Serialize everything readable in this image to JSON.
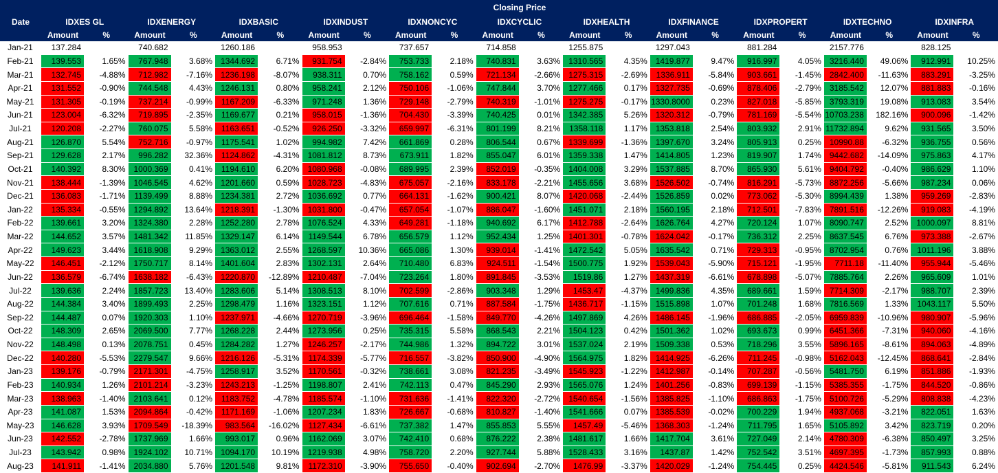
{
  "table": {
    "title": "Closing Price",
    "date_header": "Date",
    "amount_label": "Amount",
    "pct_label": "%",
    "columns": [
      "IDXES GL",
      "IDXENERGY",
      "IDXBASIC",
      "IDXINDUST",
      "IDXNONCYC",
      "IDXCYCLIC",
      "IDXHEALTH",
      "IDXFINANCE",
      "IDXPROPERT",
      "IDXTECHNO",
      "IDXINFRA"
    ],
    "rows": [
      [
        "Jan-21",
        "137.284",
        null,
        "740.682",
        null,
        "1260.186",
        null,
        "958.953",
        null,
        "737.657",
        null,
        "714.858",
        null,
        "1255.875",
        null,
        "1297.043",
        null,
        "881.284",
        null,
        "2157.776",
        null,
        "828.125",
        null
      ],
      [
        "Feb-21",
        "139.553",
        "1.65%",
        "767.948",
        "3.68%",
        "1344.692",
        "6.71%",
        "931.754",
        "-2.84%",
        "753.733",
        "2.18%",
        "740.831",
        "3.63%",
        "1310.565",
        "4.35%",
        "1419.877",
        "9.47%",
        "916.997",
        "4.05%",
        "3216.440",
        "49.06%",
        "912.991",
        "10.25%"
      ],
      [
        "Mar-21",
        "132.745",
        "-4.88%",
        "712.982",
        "-7.16%",
        "1236.198",
        "-8.07%",
        "938.311",
        "0.70%",
        "758.162",
        "0.59%",
        "721.134",
        "-2.66%",
        "1275.315",
        "-2.69%",
        "1336.911",
        "-5.84%",
        "903.661",
        "-1.45%",
        "2842.400",
        "-11.63%",
        "883.291",
        "-3.25%"
      ],
      [
        "Apr-21",
        "131.552",
        "-0.90%",
        "744.548",
        "4.43%",
        "1246.131",
        "0.80%",
        "958.241",
        "2.12%",
        "750.106",
        "-1.06%",
        "747.844",
        "3.70%",
        "1277.466",
        "0.17%",
        "1327.735",
        "-0.69%",
        "878.406",
        "-2.79%",
        "3185.542",
        "12.07%",
        "881.883",
        "-0.16%"
      ],
      [
        "May-21",
        "131.305",
        "-0.19%",
        "737.214",
        "-0.99%",
        "1167.209",
        "-6.33%",
        "971.248",
        "1.36%",
        "729.148",
        "-2.79%",
        "740.319",
        "-1.01%",
        "1275.275",
        "-0.17%",
        "1330.8000",
        "0.23%",
        "827.018",
        "-5.85%",
        "3793.319",
        "19.08%",
        "913.083",
        "3.54%"
      ],
      [
        "Jun-21",
        "123.004",
        "-6.32%",
        "719.895",
        "-2.35%",
        "1169.677",
        "0.21%",
        "958.015",
        "-1.36%",
        "704.430",
        "-3.39%",
        "740.425",
        "0.01%",
        "1342.385",
        "5.26%",
        "1320.312",
        "-0.79%",
        "781.169",
        "-5.54%",
        "10703.238",
        "182.16%",
        "900.096",
        "-1.42%"
      ],
      [
        "Jul-21",
        "120.208",
        "-2.27%",
        "760.075",
        "5.58%",
        "1163.651",
        "-0.52%",
        "926.250",
        "-3.32%",
        "659.997",
        "-6.31%",
        "801.199",
        "8.21%",
        "1358.118",
        "1.17%",
        "1353.818",
        "2.54%",
        "803.932",
        "2.91%",
        "11732.894",
        "9.62%",
        "931.565",
        "3.50%"
      ],
      [
        "Aug-21",
        "126.870",
        "5.54%",
        "752.716",
        "-0.97%",
        "1175.541",
        "1.02%",
        "994.982",
        "7.42%",
        "661.869",
        "0.28%",
        "806.544",
        "0.67%",
        "1339.699",
        "-1.36%",
        "1397.670",
        "3.24%",
        "805.913",
        "0.25%",
        "10990.88",
        "-6.32%",
        "936.755",
        "0.56%"
      ],
      [
        "Sep-21",
        "129.628",
        "2.17%",
        "996.282",
        "32.36%",
        "1124.862",
        "-4.31%",
        "1081.812",
        "8.73%",
        "673.911",
        "1.82%",
        "855.047",
        "6.01%",
        "1359.338",
        "1.47%",
        "1414.805",
        "1.23%",
        "819.907",
        "1.74%",
        "9442.682",
        "-14.09%",
        "975.863",
        "4.17%"
      ],
      [
        "Oct-21",
        "140.392",
        "8.30%",
        "1000.369",
        "0.41%",
        "1194.610",
        "6.20%",
        "1080.968",
        "-0.08%",
        "689.995",
        "2.39%",
        "852.019",
        "-0.35%",
        "1404.008",
        "3.29%",
        "1537.885",
        "8.70%",
        "865.930",
        "5.61%",
        "9404.792",
        "-0.40%",
        "986.629",
        "1.10%"
      ],
      [
        "Nov-21",
        "138.444",
        "-1.39%",
        "1046.545",
        "4.62%",
        "1201.660",
        "0.59%",
        "1028.723",
        "-4.83%",
        "675.057",
        "-2.16%",
        "833.178",
        "-2.21%",
        "1455.656",
        "3.68%",
        "1526.502",
        "-0.74%",
        "816.291",
        "-5.73%",
        "8872.256",
        "-5.66%",
        "987.234",
        "0.06%"
      ],
      [
        "Dec-21",
        "136.083",
        "-1.71%",
        "1139.499",
        "8.88%",
        "1234.381",
        "2.72%",
        "1036.692",
        "0.77%",
        "664.131",
        "-1.62%",
        "900.421",
        "8.07%",
        "1420.068",
        "-2.44%",
        "1526.859",
        "0.02%",
        "773.062",
        "-5.30%",
        "8994.439",
        "1.38%",
        "959.269",
        "-2.83%"
      ],
      [
        "Jan-22",
        "135.334",
        "-0.55%",
        "1294.892",
        "13.64%",
        "1218.391",
        "-1.30%",
        "1031.800",
        "-0.47%",
        "657.054",
        "-1.07%",
        "886.047",
        "-1.60%",
        "1451.071",
        "2.18%",
        "1560.195",
        "2.18%",
        "712.501",
        "-7.83%",
        "7891.516",
        "-12.26%",
        "919.083",
        "-4.19%"
      ],
      [
        "Feb-22",
        "139.661",
        "3.20%",
        "1324.380",
        "2.28%",
        "1252.280",
        "2.78%",
        "1076.524",
        "4.33%",
        "649.281",
        "-1.18%",
        "940.692",
        "6.17%",
        "1412.788",
        "-2.64%",
        "1626.764",
        "4.27%",
        "720.124",
        "1.07%",
        "8090.747",
        "2.52%",
        "1000.097",
        "8.81%"
      ],
      [
        "Mar-22",
        "144.652",
        "3.57%",
        "1481.342",
        "11.85%",
        "1329.147",
        "6.14%",
        "1149.544",
        "6.78%",
        "656.579",
        "1.12%",
        "952.434",
        "1.25%",
        "1401.301",
        "-0.78%",
        "1624.042",
        "-0.17%",
        "736.312",
        "2.25%",
        "8637.545",
        "6.76%",
        "973.388",
        "-2.67%"
      ],
      [
        "Apr-22",
        "149.623",
        "3.44%",
        "1618.908",
        "9.29%",
        "1363.012",
        "2.55%",
        "1268.597",
        "10.36%",
        "665.086",
        "1.30%",
        "939.014",
        "-1.41%",
        "1472.542",
        "5.05%",
        "1635.542",
        "0.71%",
        "729.313",
        "-0.95%",
        "8702.954",
        "0.76%",
        "1011.196",
        "3.88%"
      ],
      [
        "May-22",
        "146.451",
        "-2.12%",
        "1750.717",
        "8.14%",
        "1401.604",
        "2.83%",
        "1302.131",
        "2.64%",
        "710.480",
        "6.83%",
        "924.511",
        "-1.54%",
        "1500.775",
        "1.92%",
        "1539.043",
        "-5.90%",
        "715.121",
        "-1.95%",
        "7711.18",
        "-11.40%",
        "955.944",
        "-5.46%"
      ],
      [
        "Jun-22",
        "136.579",
        "-6.74%",
        "1638.182",
        "-6.43%",
        "1220.870",
        "-12.89%",
        "1210.487",
        "-7.04%",
        "723.264",
        "1.80%",
        "891.845",
        "-3.53%",
        "1519.86",
        "1.27%",
        "1437.319",
        "-6.61%",
        "678.898",
        "-5.07%",
        "7885.764",
        "2.26%",
        "965.609",
        "1.01%"
      ],
      [
        "Jul-22",
        "139.636",
        "2.24%",
        "1857.723",
        "13.40%",
        "1283.606",
        "5.14%",
        "1308.513",
        "8.10%",
        "702.599",
        "-2.86%",
        "903.348",
        "1.29%",
        "1453.47",
        "-4.37%",
        "1499.836",
        "4.35%",
        "689.661",
        "1.59%",
        "7714.309",
        "-2.17%",
        "988.707",
        "2.39%"
      ],
      [
        "Aug-22",
        "144.384",
        "3.40%",
        "1899.493",
        "2.25%",
        "1298.479",
        "1.16%",
        "1323.151",
        "1.12%",
        "707.616",
        "0.71%",
        "887.584",
        "-1.75%",
        "1436.717",
        "-1.15%",
        "1515.898",
        "1.07%",
        "701.248",
        "1.68%",
        "7816.569",
        "1.33%",
        "1043.117",
        "5.50%"
      ],
      [
        "Sep-22",
        "144.487",
        "0.07%",
        "1920.303",
        "1.10%",
        "1237.971",
        "-4.66%",
        "1270.719",
        "-3.96%",
        "696.464",
        "-1.58%",
        "849.770",
        "-4.26%",
        "1497.869",
        "4.26%",
        "1486.145",
        "-1.96%",
        "686.885",
        "-2.05%",
        "6959.839",
        "-10.96%",
        "980.907",
        "-5.96%"
      ],
      [
        "Oct-22",
        "148.309",
        "2.65%",
        "2069.500",
        "7.77%",
        "1268.228",
        "2.44%",
        "1273.956",
        "0.25%",
        "735.315",
        "5.58%",
        "868.543",
        "2.21%",
        "1504.123",
        "0.42%",
        "1501.362",
        "1.02%",
        "693.673",
        "0.99%",
        "6451.366",
        "-7.31%",
        "940.060",
        "-4.16%"
      ],
      [
        "Nov-22",
        "148.498",
        "0.13%",
        "2078.751",
        "0.45%",
        "1284.282",
        "1.27%",
        "1246.257",
        "-2.17%",
        "744.986",
        "1.32%",
        "894.722",
        "3.01%",
        "1537.024",
        "2.19%",
        "1509.338",
        "0.53%",
        "718.296",
        "3.55%",
        "5896.165",
        "-8.61%",
        "894.063",
        "-4.89%"
      ],
      [
        "Dec-22",
        "140.280",
        "-5.53%",
        "2279.547",
        "9.66%",
        "1216.126",
        "-5.31%",
        "1174.339",
        "-5.77%",
        "716.557",
        "-3.82%",
        "850.900",
        "-4.90%",
        "1564.975",
        "1.82%",
        "1414.925",
        "-6.26%",
        "711.245",
        "-0.98%",
        "5162.043",
        "-12.45%",
        "868.641",
        "-2.84%"
      ],
      [
        "Jan-23",
        "139.176",
        "-0.79%",
        "2171.301",
        "-4.75%",
        "1258.917",
        "3.52%",
        "1170.561",
        "-0.32%",
        "738.661",
        "3.08%",
        "821.235",
        "-3.49%",
        "1545.923",
        "-1.22%",
        "1412.987",
        "-0.14%",
        "707.287",
        "-0.56%",
        "5481.750",
        "6.19%",
        "851.886",
        "-1.93%"
      ],
      [
        "Feb-23",
        "140.934",
        "1.26%",
        "2101.214",
        "-3.23%",
        "1243.213",
        "-1.25%",
        "1198.807",
        "2.41%",
        "742.113",
        "0.47%",
        "845.290",
        "2.93%",
        "1565.076",
        "1.24%",
        "1401.256",
        "-0.83%",
        "699.139",
        "-1.15%",
        "5385.355",
        "-1.75%",
        "844.520",
        "-0.86%"
      ],
      [
        "Mar-23",
        "138.963",
        "-1.40%",
        "2103.641",
        "0.12%",
        "1183.752",
        "-4.78%",
        "1185.574",
        "-1.10%",
        "731.636",
        "-1.41%",
        "822.320",
        "-2.72%",
        "1540.654",
        "-1.56%",
        "1385.825",
        "-1.10%",
        "686.863",
        "-1.75%",
        "5100.726",
        "-5.29%",
        "808.838",
        "-4.23%"
      ],
      [
        "Apr-23",
        "141.087",
        "1.53%",
        "2094.864",
        "-0.42%",
        "1171.169",
        "-1.06%",
        "1207.234",
        "1.83%",
        "726.667",
        "-0.68%",
        "810.827",
        "-1.40%",
        "1541.666",
        "0.07%",
        "1385.539",
        "-0.02%",
        "700.229",
        "1.94%",
        "4937.068",
        "-3.21%",
        "822.051",
        "1.63%"
      ],
      [
        "May-23",
        "146.628",
        "3.93%",
        "1709.549",
        "-18.39%",
        "983.564",
        "-16.02%",
        "1127.434",
        "-6.61%",
        "737.382",
        "1.47%",
        "855.853",
        "5.55%",
        "1457.49",
        "-5.46%",
        "1368.303",
        "-1.24%",
        "711.795",
        "1.65%",
        "5105.892",
        "3.42%",
        "823.719",
        "0.20%"
      ],
      [
        "Jun-23",
        "142.552",
        "-2.78%",
        "1737.969",
        "1.66%",
        "993.017",
        "0.96%",
        "1162.069",
        "3.07%",
        "742.410",
        "0.68%",
        "876.222",
        "2.38%",
        "1481.617",
        "1.66%",
        "1417.704",
        "3.61%",
        "727.049",
        "2.14%",
        "4780.309",
        "-6.38%",
        "850.497",
        "3.25%"
      ],
      [
        "Jul-23",
        "143.942",
        "0.98%",
        "1924.102",
        "10.71%",
        "1094.170",
        "10.19%",
        "1219.938",
        "4.98%",
        "758.720",
        "2.20%",
        "927.744",
        "5.88%",
        "1528.433",
        "3.16%",
        "1437.87",
        "1.42%",
        "752.542",
        "3.51%",
        "4697.395",
        "-1.73%",
        "857.993",
        "0.88%"
      ],
      [
        "Aug-23",
        "141.911",
        "-1.41%",
        "2034.880",
        "5.76%",
        "1201.548",
        "9.81%",
        "1172.310",
        "-3.90%",
        "755.650",
        "-0.40%",
        "902.694",
        "-2.70%",
        "1476.99",
        "-3.37%",
        "1420.029",
        "-1.24%",
        "754.445",
        "0.25%",
        "4424.546",
        "-5.81%",
        "911.543",
        "6.24%"
      ]
    ]
  }
}
